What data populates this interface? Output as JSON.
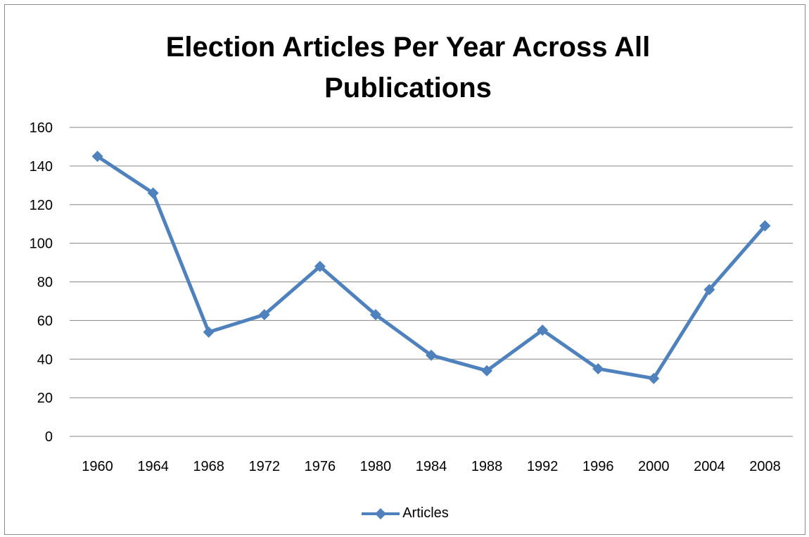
{
  "chart_data": {
    "type": "line",
    "title": "Election Articles Per Year Across All\nPublications",
    "xlabel": "",
    "ylabel": "",
    "categories": [
      "1960",
      "1964",
      "1968",
      "1972",
      "1976",
      "1980",
      "1984",
      "1988",
      "1992",
      "1996",
      "2000",
      "2004",
      "2008"
    ],
    "series": [
      {
        "name": "Articles",
        "values": [
          145,
          126,
          54,
          63,
          88,
          63,
          42,
          34,
          55,
          35,
          30,
          76,
          109
        ],
        "color": "#4f81bd",
        "marker": "diamond"
      }
    ],
    "ylim": [
      0,
      160
    ],
    "yticks": [
      0,
      20,
      40,
      60,
      80,
      100,
      120,
      140,
      160
    ],
    "grid": true,
    "legend_position": "bottom"
  },
  "colors": {
    "series": "#4f81bd",
    "gridline": "#868686",
    "text": "#000000"
  }
}
